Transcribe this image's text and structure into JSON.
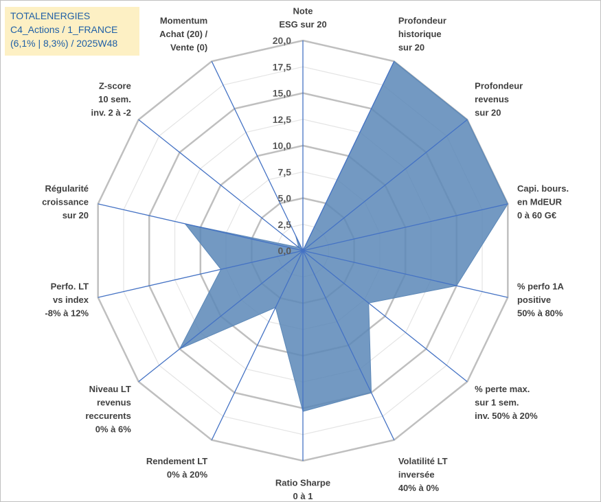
{
  "title": {
    "line1": "TOTALENERGIES",
    "line2": "C4_Actions / 1_FRANCE",
    "line3": "(6,1% | 8,3%) / 2025W48"
  },
  "colors": {
    "fill": "#5b87b7",
    "stroke": "#4472c4",
    "grid": "#c0c0c0",
    "label": "#404040",
    "title_bg": "#fdf0c4",
    "title_text": "#1f5fa6"
  },
  "chart_data": {
    "type": "radar",
    "rmin": 0,
    "rmax": 20,
    "tick_step": 2.5,
    "tick_labels": [
      "0,0",
      "2,5",
      "5,0",
      "7,5",
      "10,0",
      "12,5",
      "15,0",
      "17,5",
      "20,0"
    ],
    "axes": [
      {
        "lines": [
          "Note",
          "ESG sur 20"
        ],
        "value": 0
      },
      {
        "lines": [
          "Profondeur",
          "historique",
          "sur 20"
        ],
        "value": 20
      },
      {
        "lines": [
          "Profondeur",
          "revenus",
          "sur 20"
        ],
        "value": 20
      },
      {
        "lines": [
          "Capi. bours.",
          "en MdEUR",
          "0 à 60 G€"
        ],
        "value": 20
      },
      {
        "lines": [
          "% perfo 1A",
          "positive",
          "50% à 80%"
        ],
        "value": 15
      },
      {
        "lines": [
          "% perte max.",
          "sur 1 sem.",
          "inv. 50% à 20%"
        ],
        "value": 8
      },
      {
        "lines": [
          "Volatilité LT",
          "inversée",
          "40% à 0%"
        ],
        "value": 15
      },
      {
        "lines": [
          "Ratio Sharpe",
          "0 à 1"
        ],
        "value": 15.3
      },
      {
        "lines": [
          "Rendement LT",
          "0% à 20%"
        ],
        "value": 6
      },
      {
        "lines": [
          "Niveau LT",
          "revenus",
          "reccurents",
          "0% à 6%"
        ],
        "value": 15
      },
      {
        "lines": [
          "Perfo. LT",
          "vs index",
          "-8% à 12%"
        ],
        "value": 8
      },
      {
        "lines": [
          "Régularité",
          "croissance",
          "sur 20"
        ],
        "value": 11.5
      },
      {
        "lines": [
          "Z-score",
          "10 sem.",
          "inv. 2 à -2"
        ],
        "value": 0.5
      },
      {
        "lines": [
          "Momentum",
          "Achat (20) /",
          "Vente (0)"
        ],
        "value": 1.6
      }
    ]
  }
}
